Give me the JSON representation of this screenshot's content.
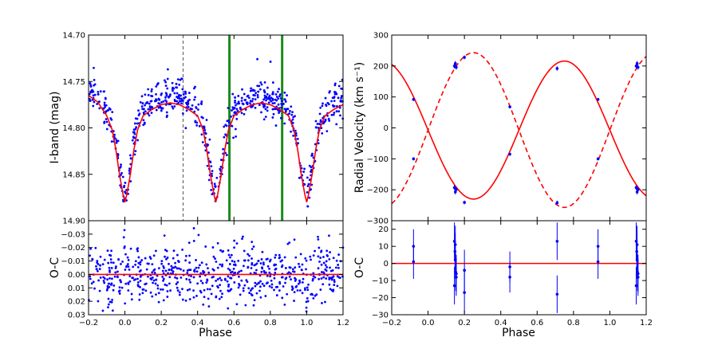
{
  "chart_data": [
    {
      "id": "lc",
      "type": "scatter",
      "xlabel": "",
      "ylabel": "I-band (mag)",
      "xlim": [
        -0.2,
        1.2
      ],
      "ylim": [
        14.7,
        14.9
      ],
      "y_inverted": true,
      "xticks": [
        -0.2,
        0.0,
        0.2,
        0.4,
        0.6,
        0.8,
        1.0,
        1.2
      ],
      "xticks_labeled": false,
      "yticks": [
        14.7,
        14.75,
        14.8,
        14.85,
        14.9
      ],
      "ytick_labels": [
        "14.70",
        "14.75",
        "14.80",
        "14.85",
        "14.90"
      ],
      "series": [
        {
          "name": "observed I-band",
          "kind": "points",
          "color": "#0000ff",
          "count_approx": 700
        },
        {
          "name": "model light curve",
          "kind": "line",
          "color": "#ff0000",
          "x": [
            -0.2,
            -0.15,
            -0.1,
            -0.07,
            -0.05,
            -0.03,
            -0.01,
            0.0,
            0.01,
            0.03,
            0.05,
            0.07,
            0.1,
            0.15,
            0.2,
            0.25,
            0.3,
            0.35,
            0.4,
            0.43,
            0.45,
            0.47,
            0.49,
            0.5,
            0.51,
            0.53,
            0.55,
            0.57,
            0.6,
            0.65,
            0.7,
            0.75,
            0.8,
            0.85,
            0.9,
            0.93,
            0.95,
            0.97,
            0.99,
            1.0,
            1.01,
            1.03,
            1.05,
            1.07,
            1.1,
            1.15,
            1.2
          ],
          "y": [
            14.765,
            14.772,
            14.787,
            14.802,
            14.823,
            14.85,
            14.872,
            14.88,
            14.872,
            14.85,
            14.823,
            14.802,
            14.787,
            14.78,
            14.775,
            14.773,
            14.775,
            14.78,
            14.787,
            14.802,
            14.823,
            14.85,
            14.872,
            14.88,
            14.872,
            14.85,
            14.823,
            14.802,
            14.787,
            14.78,
            14.775,
            14.773,
            14.775,
            14.78,
            14.787,
            14.802,
            14.823,
            14.85,
            14.872,
            14.88,
            14.872,
            14.85,
            14.823,
            14.802,
            14.787,
            14.78,
            14.775
          ]
        }
      ],
      "vertical_lines": [
        {
          "x": 0.32,
          "style": "dashed",
          "color": "#555555"
        },
        {
          "x": 0.575,
          "style": "solid",
          "color": "#1a8a1a"
        },
        {
          "x": 0.865,
          "style": "solid",
          "color": "#1a8a1a"
        }
      ]
    },
    {
      "id": "lc_res",
      "type": "scatter",
      "xlabel": "Phase",
      "ylabel": "O-C",
      "xlim": [
        -0.2,
        1.2
      ],
      "ylim": [
        -0.04,
        0.03
      ],
      "y_inverted": true,
      "xticks": [
        -0.2,
        0.0,
        0.2,
        0.4,
        0.6,
        0.8,
        1.0,
        1.2
      ],
      "xtick_labels": [
        "−0.2",
        "0.0",
        "0.2",
        "0.4",
        "0.6",
        "0.8",
        "1.0",
        "1.2"
      ],
      "yticks": [
        -0.03,
        -0.02,
        -0.01,
        0.0,
        0.01,
        0.02,
        0.03
      ],
      "ytick_labels": [
        "−0.03",
        "−0.02",
        "−0.01",
        "0.00",
        "0.01",
        "0.02",
        "0.03"
      ],
      "series": [
        {
          "name": "residuals",
          "kind": "points",
          "color": "#0000ff",
          "scatter_std": 0.011
        },
        {
          "name": "zero line",
          "kind": "line",
          "color": "#ff0000",
          "y_constant": 0
        }
      ]
    },
    {
      "id": "rv",
      "type": "scatter",
      "xlabel": "",
      "ylabel": "Radial Velocity (km s⁻¹)",
      "xlim": [
        -0.2,
        1.2
      ],
      "ylim": [
        -300,
        300
      ],
      "xticks": [
        -0.2,
        0.0,
        0.2,
        0.4,
        0.6,
        0.8,
        1.0,
        1.2
      ],
      "xticks_labeled": false,
      "yticks": [
        -300,
        -200,
        -100,
        0,
        100,
        200,
        300
      ],
      "ytick_labels": [
        "−300",
        "−200",
        "−100",
        "0",
        "100",
        "200",
        "300"
      ],
      "series": [
        {
          "name": "primary model",
          "kind": "sine",
          "style": "solid",
          "color": "#ff0000",
          "gamma": -7,
          "amplitude": 223,
          "sign": -1
        },
        {
          "name": "secondary model",
          "kind": "sine",
          "style": "dashed",
          "color": "#ff0000",
          "gamma": -7,
          "amplitude": 250,
          "sign": 1
        },
        {
          "name": "RV measurements",
          "kind": "errorbar_points",
          "color": "#0000ff",
          "x": [
            -0.08,
            -0.08,
            0.145,
            0.15,
            0.155,
            0.145,
            0.15,
            0.155,
            0.2,
            0.2,
            0.45,
            0.45,
            0.71,
            0.71,
            0.935,
            0.935,
            1.145,
            1.15,
            1.155,
            1.145,
            1.15,
            1.155
          ],
          "y": [
            92,
            -100,
            200,
            208,
            196,
            -193,
            -207,
            -199,
            228,
            -241,
            68,
            -85,
            192,
            -242,
            92,
            -100,
            200,
            208,
            196,
            -193,
            -207,
            -199
          ],
          "err": [
            5,
            5,
            8,
            8,
            8,
            8,
            8,
            8,
            6,
            6,
            5,
            5,
            7,
            7,
            5,
            5,
            8,
            8,
            8,
            8,
            8,
            8
          ]
        }
      ]
    },
    {
      "id": "rv_res",
      "type": "scatter",
      "xlabel": "Phase",
      "ylabel": "O-C",
      "xlim": [
        -0.2,
        1.2
      ],
      "ylim": [
        -30,
        25
      ],
      "xticks": [
        -0.2,
        0.0,
        0.2,
        0.4,
        0.6,
        0.8,
        1.0,
        1.2
      ],
      "xtick_labels": [
        "−0.2",
        "0.0",
        "0.2",
        "0.4",
        "0.6",
        "0.8",
        "1.0",
        "1.2"
      ],
      "yticks": [
        -30,
        -20,
        -10,
        0,
        10,
        20
      ],
      "ytick_labels": [
        "−30",
        "−20",
        "−10",
        "0",
        "10",
        "20"
      ],
      "series": [
        {
          "name": "zero line",
          "kind": "line",
          "color": "#ff0000",
          "y_constant": 0
        },
        {
          "name": "RV residuals",
          "kind": "errorbar_points",
          "color": "#0000ff",
          "x": [
            -0.08,
            -0.08,
            0.145,
            0.148,
            0.15,
            0.152,
            0.155,
            0.145,
            0.15,
            0.155,
            0.2,
            0.2,
            0.45,
            0.45,
            0.71,
            0.71,
            0.935,
            0.935,
            1.145,
            1.148,
            1.15,
            1.152,
            1.155,
            1.145,
            1.15,
            1.155
          ],
          "y": [
            10,
            1,
            13,
            7,
            11,
            -5,
            -8,
            -13,
            2,
            -6,
            -4,
            -17,
            -2,
            -8,
            13,
            -18,
            10,
            1,
            13,
            7,
            11,
            -5,
            -8,
            -13,
            2,
            -6
          ],
          "err": [
            10,
            10,
            11,
            11,
            11,
            11,
            11,
            11,
            11,
            11,
            12,
            12,
            9,
            9,
            11,
            11,
            10,
            10,
            11,
            11,
            11,
            11,
            11,
            11,
            11,
            11
          ]
        }
      ]
    }
  ]
}
